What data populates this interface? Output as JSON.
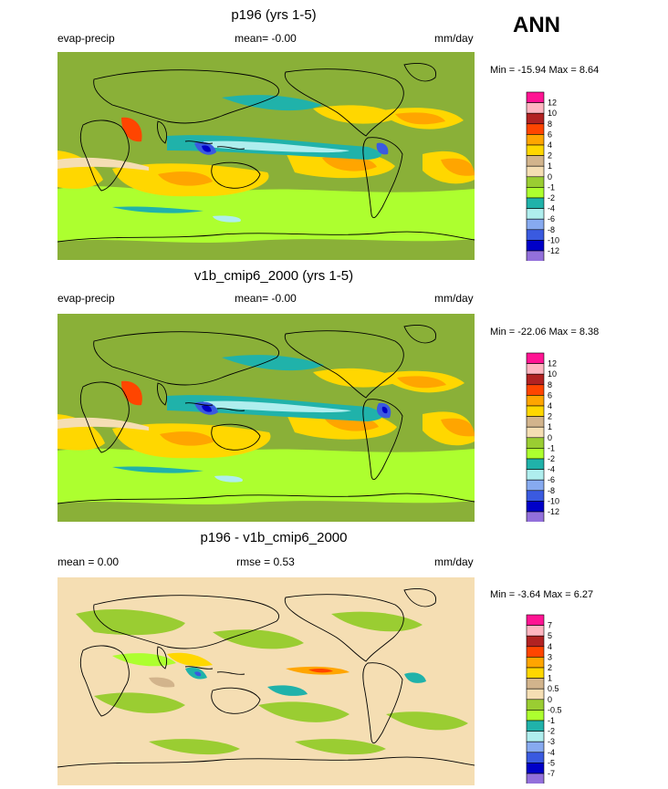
{
  "season": "ANN",
  "chart_data": [
    {
      "type": "heatmap",
      "title": "p196 (yrs 1-5)",
      "left_label": "evap-precip",
      "center_label": "mean=  -0.00",
      "right_label": "mm/day",
      "minmax": "Min = -15.94 Max =   8.64",
      "levels": [
        "12",
        "10",
        "8",
        "6",
        "4",
        "2",
        "1",
        "0",
        "-1",
        "-2",
        "-4",
        "-6",
        "-8",
        "-10",
        "-12"
      ],
      "colors": [
        "#ff1493",
        "#ffb6c1",
        "#b22222",
        "#ff4500",
        "#ffa500",
        "#ffd700",
        "#d2b48c",
        "#f5deb3",
        "#9acd32",
        "#adff2f",
        "#20b2aa",
        "#afeeee",
        "#87aaf0",
        "#3a5ae0",
        "#0000c8",
        "#9370db"
      ],
      "base_color": "#8ab038"
    },
    {
      "type": "heatmap",
      "title": "v1b_cmip6_2000 (yrs 1-5)",
      "left_label": "evap-precip",
      "center_label": "mean=  -0.00",
      "right_label": "mm/day",
      "minmax": "Min = -22.06 Max =   8.38",
      "levels": [
        "12",
        "10",
        "8",
        "6",
        "4",
        "2",
        "1",
        "0",
        "-1",
        "-2",
        "-4",
        "-6",
        "-8",
        "-10",
        "-12"
      ],
      "colors": [
        "#ff1493",
        "#ffb6c1",
        "#b22222",
        "#ff4500",
        "#ffa500",
        "#ffd700",
        "#d2b48c",
        "#f5deb3",
        "#9acd32",
        "#adff2f",
        "#20b2aa",
        "#afeeee",
        "#87aaf0",
        "#3a5ae0",
        "#0000c8",
        "#9370db"
      ],
      "base_color": "#8ab038"
    },
    {
      "type": "heatmap",
      "title": "p196 - v1b_cmip6_2000",
      "left_label": "mean =   0.00",
      "center_label": "rmse =   0.53",
      "right_label": "mm/day",
      "minmax": "Min =  -3.64 Max =   6.27",
      "levels": [
        "7",
        "5",
        "4",
        "3",
        "2",
        "1",
        "0.5",
        "0",
        "-0.5",
        "-1",
        "-2",
        "-3",
        "-4",
        "-5",
        "-7"
      ],
      "colors": [
        "#ff1493",
        "#ffb6c1",
        "#b22222",
        "#ff4500",
        "#ffa500",
        "#ffd700",
        "#d2b48c",
        "#f5deb3",
        "#9acd32",
        "#adff2f",
        "#20b2aa",
        "#afeeee",
        "#87aaf0",
        "#3a5ae0",
        "#0000c8",
        "#9370db"
      ],
      "base_color": "#f5deb3"
    }
  ]
}
